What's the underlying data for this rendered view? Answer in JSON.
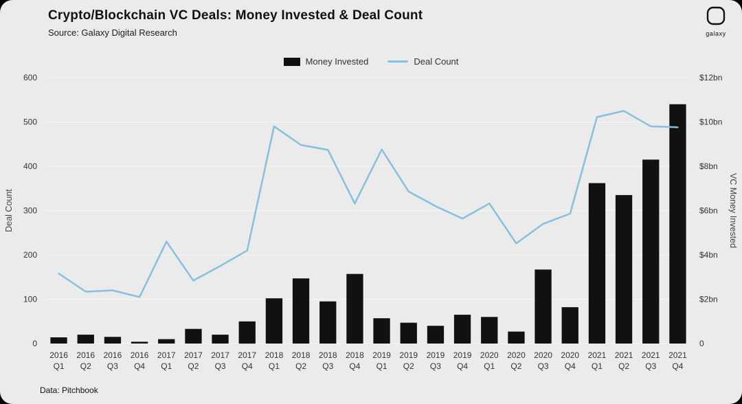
{
  "header": {
    "title": "Crypto/Blockchain VC Deals: Money Invested & Deal Count",
    "subtitle": "Source: Galaxy Digital Research"
  },
  "logo": {
    "wordmark": "galaxy"
  },
  "legend": {
    "items": [
      {
        "label": "Money Invested",
        "swatch": "bar"
      },
      {
        "label": "Deal Count",
        "swatch": "line"
      }
    ]
  },
  "footer": {
    "text": "Data: Pitchbook"
  },
  "colors": {
    "bar": "#111111",
    "line": "#85c0df",
    "panel_background": "#ebebeb",
    "frame": "#000000",
    "grid": "#ffffff"
  },
  "chart_data": {
    "type": "bar",
    "subtype": "combo-bar-line-dual-axis",
    "title": "Crypto/Blockchain VC Deals: Money Invested & Deal Count",
    "categories": [
      "2016 Q1",
      "2016 Q2",
      "2016 Q3",
      "2016 Q4",
      "2017 Q1",
      "2017 Q2",
      "2017 Q3",
      "2017 Q4",
      "2018 Q1",
      "2018 Q2",
      "2018 Q3",
      "2018 Q4",
      "2019 Q1",
      "2019 Q2",
      "2019 Q3",
      "2019 Q4",
      "2020 Q1",
      "2020 Q2",
      "2020 Q3",
      "2020 Q4",
      "2021 Q1",
      "2021 Q2",
      "2021 Q3",
      "2021 Q4"
    ],
    "series": [
      {
        "name": "Money Invested",
        "type": "bar",
        "axis": "right",
        "unit": "$bn",
        "color": "#111111",
        "values": [
          0.28,
          0.4,
          0.3,
          0.08,
          0.2,
          0.66,
          0.4,
          1.0,
          2.04,
          2.94,
          1.9,
          3.14,
          1.14,
          0.94,
          0.8,
          1.3,
          1.2,
          0.54,
          3.34,
          1.64,
          7.24,
          6.7,
          8.3,
          10.8
        ]
      },
      {
        "name": "Deal Count",
        "type": "line",
        "axis": "left",
        "unit": "deals",
        "color": "#85c0df",
        "values": [
          158,
          117,
          120,
          105,
          230,
          142,
          175,
          210,
          490,
          448,
          437,
          316,
          438,
          343,
          310,
          282,
          316,
          226,
          270,
          293,
          511,
          525,
          490,
          488
        ]
      }
    ],
    "left_axis": {
      "label": "Deal Count",
      "min": 0,
      "max": 600,
      "step": 100,
      "tick_labels": [
        "0",
        "100",
        "200",
        "300",
        "400",
        "500",
        "600"
      ]
    },
    "right_axis": {
      "label": "VC Money Invested",
      "min": 0,
      "max": 12,
      "step": 2,
      "tick_labels": [
        "0",
        "$2bn",
        "$4bn",
        "$6bn",
        "$8bn",
        "$10bn",
        "$12bn"
      ]
    },
    "grid": true,
    "legend_position": "top-center"
  }
}
